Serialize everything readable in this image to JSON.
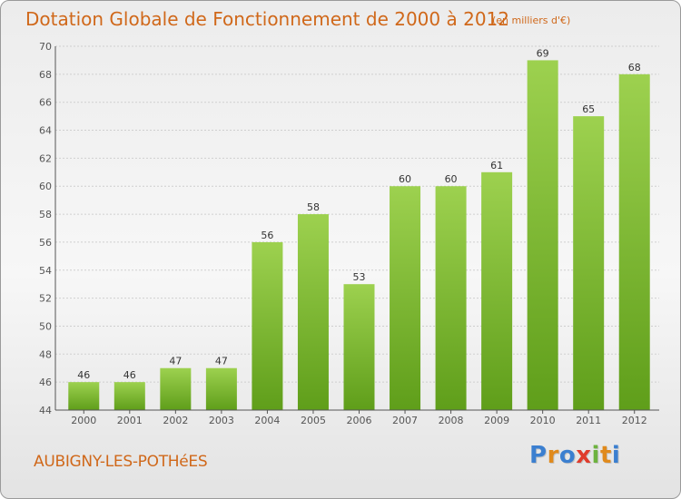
{
  "title": "Dotation Globale de Fonctionnement de 2000 à 2012",
  "subtitle": "(en milliers d'€)",
  "commune": "AUBIGNY-LES-POTHéES",
  "logo": {
    "letters": [
      "P",
      "r",
      "o",
      "x",
      "i",
      "t",
      "i"
    ],
    "colors": [
      "#3b7fd0",
      "#e08a1c",
      "#3b7fd0",
      "#e03c2c",
      "#6db33f",
      "#e08a1c",
      "#3b7fd0"
    ]
  },
  "colors": {
    "bar_top": "#9dd14f",
    "bar_bottom": "#5f9e1a",
    "axis": "#555555",
    "grid": "#cfcfcf",
    "title": "#d0681a"
  },
  "chart_data": {
    "type": "bar",
    "title": "Dotation Globale de Fonctionnement de 2000 à 2012",
    "subtitle": "(en milliers d'€)",
    "categories": [
      "2000",
      "2001",
      "2002",
      "2003",
      "2004",
      "2005",
      "2006",
      "2007",
      "2008",
      "2009",
      "2010",
      "2011",
      "2012"
    ],
    "values": [
      46,
      46,
      47,
      47,
      56,
      58,
      53,
      60,
      60,
      61,
      69,
      65,
      68
    ],
    "ylim": [
      44,
      70
    ],
    "yticks": [
      44,
      46,
      48,
      50,
      52,
      54,
      56,
      58,
      60,
      62,
      64,
      66,
      68,
      70
    ],
    "grid": true,
    "xlabel": "",
    "ylabel": ""
  }
}
